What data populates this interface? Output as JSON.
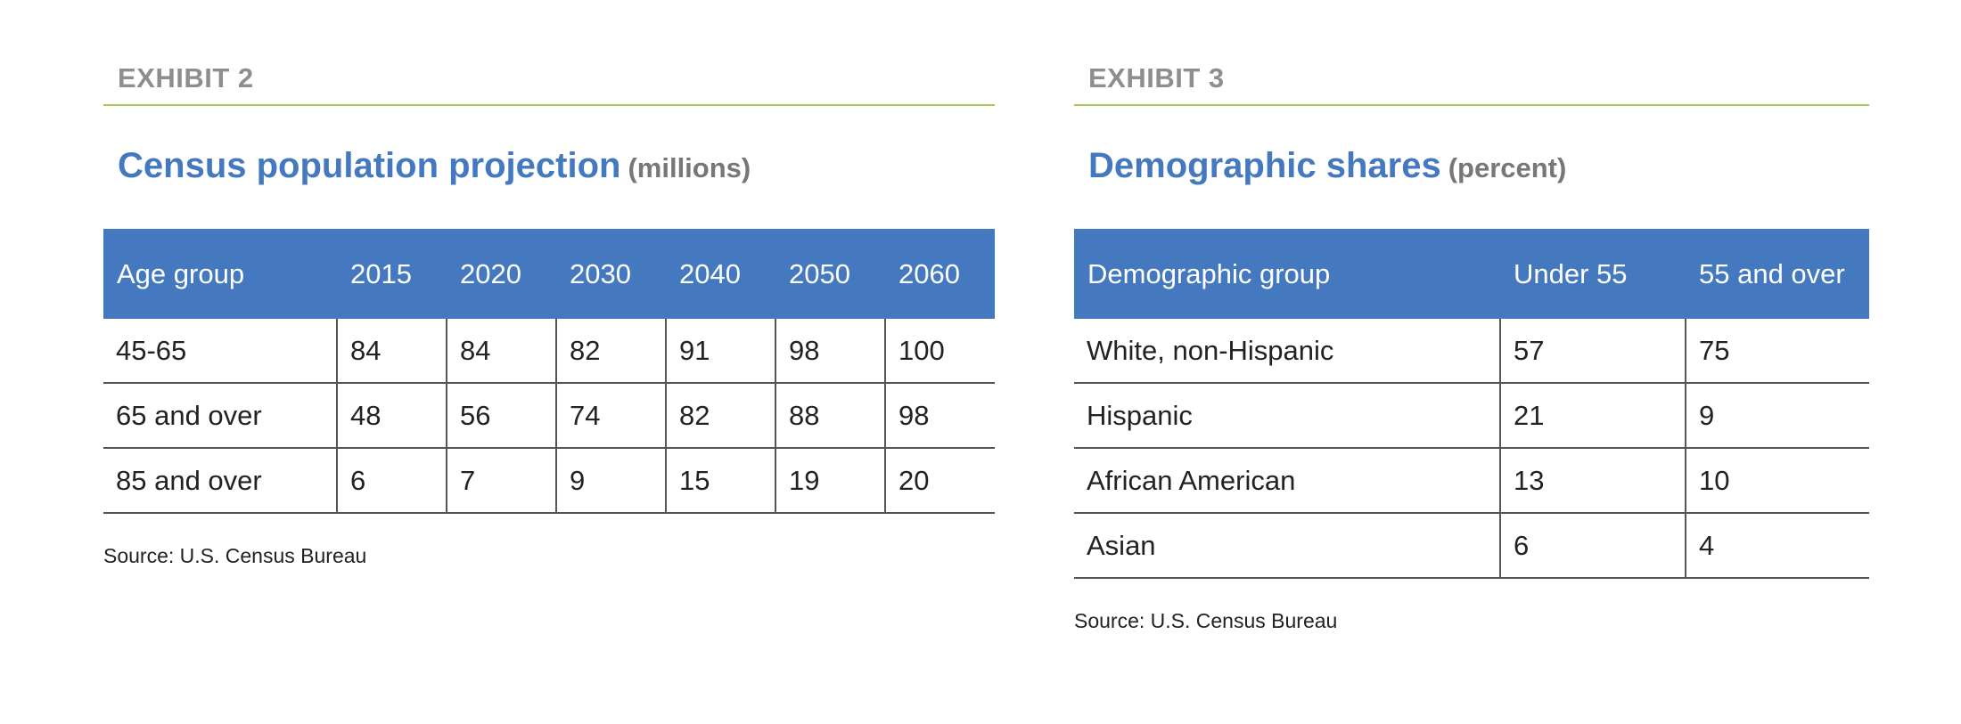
{
  "chart_data": [
    {
      "type": "table",
      "exhibit": "EXHIBIT 2",
      "title": "Census population projection",
      "unit": "(millions)",
      "columns": [
        "Age group",
        "2015",
        "2020",
        "2030",
        "2040",
        "2050",
        "2060"
      ],
      "rows": [
        [
          "45-65",
          "84",
          "84",
          "82",
          "91",
          "98",
          "100"
        ],
        [
          "65 and over",
          "48",
          "56",
          "74",
          "82",
          "88",
          "98"
        ],
        [
          "85 and over",
          "6",
          "7",
          "9",
          "15",
          "19",
          "20"
        ]
      ],
      "source": "Source: U.S. Census Bureau"
    },
    {
      "type": "table",
      "exhibit": "EXHIBIT 3",
      "title": "Demographic shares",
      "unit": "(percent)",
      "columns": [
        "Demographic group",
        "Under 55",
        "55 and over"
      ],
      "rows": [
        [
          "White, non-Hispanic",
          "57",
          "75"
        ],
        [
          "Hispanic",
          "21",
          "9"
        ],
        [
          "African American",
          "13",
          "10"
        ],
        [
          "Asian",
          "6",
          "4"
        ]
      ],
      "source": "Source: U.S. Census Bureau"
    }
  ],
  "colors": {
    "header_fill": "#4479bf",
    "title": "#4479bf",
    "exhibit_label": "#8e8e8e",
    "rule": "#a6c95a"
  }
}
